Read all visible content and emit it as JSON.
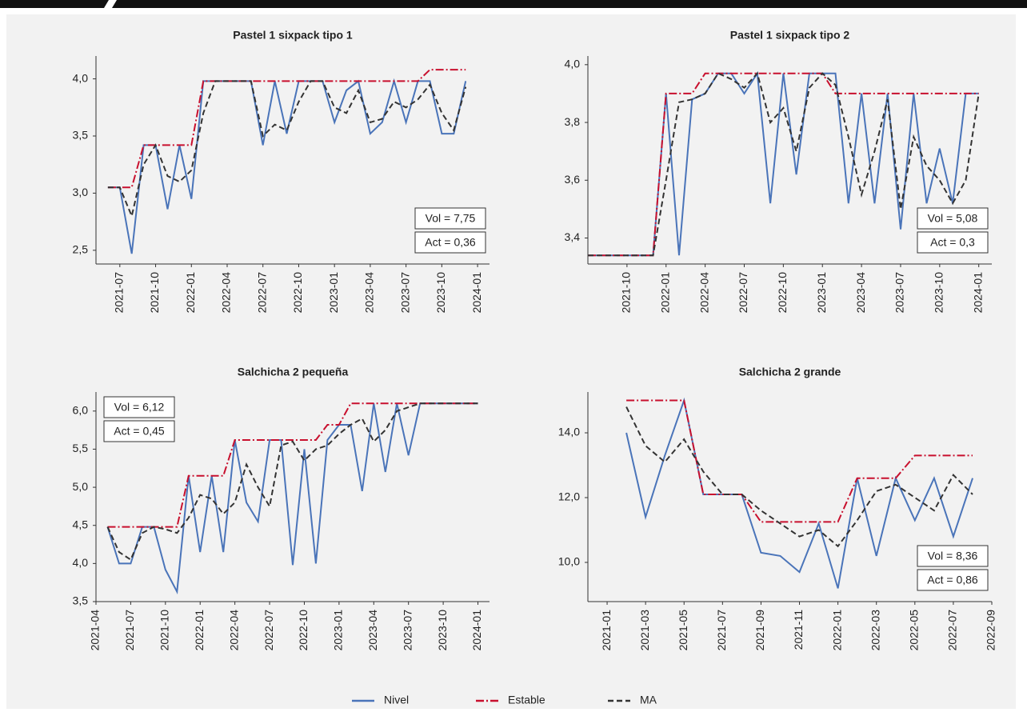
{
  "legend": [
    {
      "name": "Nivel",
      "color": "#4a74b9",
      "dash": "solid"
    },
    {
      "name": "Estable",
      "color": "#c8102e",
      "dash": "dashdot"
    },
    {
      "name": "MA",
      "color": "#333333",
      "dash": "dash"
    }
  ],
  "chart_data": [
    {
      "type": "line",
      "title": "Pastel 1 sixpack tipo 1",
      "x": [
        "2021-06",
        "2021-07",
        "2021-08",
        "2021-09",
        "2021-10",
        "2021-11",
        "2021-12",
        "2022-01",
        "2022-02",
        "2022-03",
        "2022-04",
        "2022-05",
        "2022-06",
        "2022-07",
        "2022-08",
        "2022-09",
        "2022-10",
        "2022-11",
        "2022-12",
        "2023-01",
        "2023-02",
        "2023-03",
        "2023-04",
        "2023-05",
        "2023-06",
        "2023-07",
        "2023-08",
        "2023-09",
        "2023-10",
        "2023-11",
        "2023-12"
      ],
      "series": [
        {
          "values": [
            3.05,
            3.05,
            2.47,
            3.42,
            3.42,
            2.86,
            3.42,
            2.95,
            3.98,
            3.98,
            3.98,
            3.98,
            3.98,
            3.42,
            3.98,
            3.52,
            3.98,
            3.98,
            3.98,
            3.62,
            3.9,
            3.98,
            3.52,
            3.62,
            3.98,
            3.62,
            3.98,
            3.98,
            3.52,
            3.52,
            3.98
          ]
        },
        {
          "values": [
            3.05,
            3.05,
            3.05,
            3.42,
            3.42,
            3.42,
            3.42,
            3.42,
            3.98,
            3.98,
            3.98,
            3.98,
            3.98,
            3.98,
            3.98,
            3.98,
            3.98,
            3.98,
            3.98,
            3.98,
            3.98,
            3.98,
            3.98,
            3.98,
            3.98,
            3.98,
            3.98,
            4.08,
            4.08,
            4.08,
            4.08
          ]
        },
        {
          "values": [
            3.05,
            3.05,
            2.8,
            3.25,
            3.42,
            3.15,
            3.1,
            3.2,
            3.7,
            3.98,
            3.98,
            3.98,
            3.98,
            3.5,
            3.6,
            3.55,
            3.8,
            3.98,
            3.98,
            3.75,
            3.7,
            3.9,
            3.62,
            3.65,
            3.8,
            3.75,
            3.82,
            3.95,
            3.7,
            3.55,
            3.93
          ]
        }
      ],
      "xlim": [
        "2021-05",
        "2024-02"
      ],
      "xticks": [
        "2021-07",
        "2021-10",
        "2022-01",
        "2022-04",
        "2022-07",
        "2022-10",
        "2023-01",
        "2023-04",
        "2023-07",
        "2023-10",
        "2024-01"
      ],
      "ylim": [
        2.38,
        4.2
      ],
      "yticks": [
        {
          "value": 2.5,
          "label": "2,5"
        },
        {
          "value": 3,
          "label": "3,0"
        },
        {
          "value": 3.5,
          "label": "3,5"
        },
        {
          "value": 4,
          "label": "4,0"
        }
      ],
      "annotations": [
        "Vol = 7,75",
        "Act = 0,36"
      ],
      "annotation_corner": "bottom-right"
    },
    {
      "type": "line",
      "title": "Pastel 1 sixpack tipo 2",
      "x": [
        "2021-07",
        "2021-08",
        "2021-09",
        "2021-10",
        "2021-11",
        "2021-12",
        "2022-01",
        "2022-02",
        "2022-03",
        "2022-04",
        "2022-05",
        "2022-06",
        "2022-07",
        "2022-08",
        "2022-09",
        "2022-10",
        "2022-11",
        "2022-12",
        "2023-01",
        "2023-02",
        "2023-03",
        "2023-04",
        "2023-05",
        "2023-06",
        "2023-07",
        "2023-08",
        "2023-09",
        "2023-10",
        "2023-11",
        "2023-12",
        "2024-01"
      ],
      "series": [
        {
          "values": [
            3.34,
            3.34,
            3.34,
            3.34,
            3.34,
            3.34,
            3.9,
            3.34,
            3.88,
            3.9,
            3.97,
            3.97,
            3.9,
            3.97,
            3.52,
            3.97,
            3.62,
            3.97,
            3.97,
            3.97,
            3.52,
            3.9,
            3.52,
            3.9,
            3.43,
            3.9,
            3.52,
            3.71,
            3.52,
            3.9,
            3.9
          ]
        },
        {
          "values": [
            3.34,
            3.34,
            3.34,
            3.34,
            3.34,
            3.34,
            3.9,
            3.9,
            3.9,
            3.97,
            3.97,
            3.97,
            3.97,
            3.97,
            3.97,
            3.97,
            3.97,
            3.97,
            3.97,
            3.9,
            3.9,
            3.9,
            3.9,
            3.9,
            3.9,
            3.9,
            3.9,
            3.9,
            3.9,
            3.9,
            3.9
          ]
        },
        {
          "values": [
            3.34,
            3.34,
            3.34,
            3.34,
            3.34,
            3.34,
            3.6,
            3.87,
            3.88,
            3.9,
            3.97,
            3.95,
            3.92,
            3.97,
            3.8,
            3.85,
            3.7,
            3.92,
            3.97,
            3.93,
            3.75,
            3.55,
            3.7,
            3.88,
            3.5,
            3.75,
            3.65,
            3.6,
            3.52,
            3.6,
            3.9
          ]
        }
      ],
      "xlim": [
        "2021-07",
        "2024-02"
      ],
      "xticks": [
        "2021-10",
        "2022-01",
        "2022-04",
        "2022-07",
        "2022-10",
        "2023-01",
        "2023-04",
        "2023-07",
        "2023-10",
        "2024-01"
      ],
      "ylim": [
        3.31,
        4.03
      ],
      "yticks": [
        {
          "value": 3.4,
          "label": "3,4"
        },
        {
          "value": 3.6,
          "label": "3,6"
        },
        {
          "value": 3.8,
          "label": "3,8"
        },
        {
          "value": 4,
          "label": "4,0"
        }
      ],
      "annotations": [
        "Vol = 5,08",
        "Act = 0,3"
      ],
      "annotation_corner": "bottom-right"
    },
    {
      "type": "line",
      "title": "Salchicha 2 pequeña",
      "x": [
        "2021-05",
        "2021-06",
        "2021-07",
        "2021-08",
        "2021-09",
        "2021-10",
        "2021-11",
        "2021-12",
        "2022-01",
        "2022-02",
        "2022-03",
        "2022-04",
        "2022-05",
        "2022-06",
        "2022-07",
        "2022-08",
        "2022-09",
        "2022-10",
        "2022-11",
        "2022-12",
        "2023-01",
        "2023-02",
        "2023-03",
        "2023-04",
        "2023-05",
        "2023-06",
        "2023-07",
        "2023-08",
        "2023-09",
        "2023-10",
        "2023-11",
        "2023-12",
        "2024-01"
      ],
      "series": [
        {
          "values": [
            4.48,
            4.0,
            4.0,
            4.48,
            4.48,
            3.92,
            3.63,
            5.15,
            4.15,
            5.15,
            4.15,
            5.62,
            4.8,
            4.55,
            5.62,
            5.62,
            3.98,
            5.5,
            4.0,
            5.62,
            5.82,
            5.82,
            4.95,
            6.1,
            5.2,
            6.1,
            5.42,
            6.1,
            6.1,
            6.1,
            6.1,
            6.1,
            6.1
          ]
        },
        {
          "values": [
            4.48,
            4.48,
            4.48,
            4.48,
            4.48,
            4.48,
            4.48,
            5.15,
            5.15,
            5.15,
            5.15,
            5.62,
            5.62,
            5.62,
            5.62,
            5.62,
            5.62,
            5.62,
            5.62,
            5.82,
            5.82,
            6.1,
            6.1,
            6.1,
            6.1,
            6.1,
            6.1,
            6.1,
            6.1,
            6.1,
            6.1,
            6.1,
            6.1
          ]
        },
        {
          "values": [
            4.48,
            4.15,
            4.05,
            4.4,
            4.48,
            4.45,
            4.4,
            4.6,
            4.9,
            4.85,
            4.65,
            4.8,
            5.3,
            5.0,
            4.75,
            5.55,
            5.6,
            5.35,
            5.5,
            5.55,
            5.7,
            5.82,
            5.9,
            5.6,
            5.75,
            6.0,
            6.05,
            6.1,
            6.1,
            6.1,
            6.1,
            6.1,
            6.1
          ]
        }
      ],
      "xlim": [
        "2021-04",
        "2024-02"
      ],
      "xticks": [
        "2021-04",
        "2021-07",
        "2021-10",
        "2022-01",
        "2022-04",
        "2022-07",
        "2022-10",
        "2023-01",
        "2023-04",
        "2023-07",
        "2023-10",
        "2024-01"
      ],
      "ylim": [
        3.5,
        6.25
      ],
      "yticks": [
        {
          "value": 3.5,
          "label": "3,5"
        },
        {
          "value": 4,
          "label": "4,0"
        },
        {
          "value": 4.5,
          "label": "4,5"
        },
        {
          "value": 5,
          "label": "5,0"
        },
        {
          "value": 5.5,
          "label": "5,5"
        },
        {
          "value": 6,
          "label": "6,0"
        }
      ],
      "annotations": [
        "Vol = 6,12",
        "Act = 0,45"
      ],
      "annotation_corner": "top-left"
    },
    {
      "type": "line",
      "title": "Salchicha 2 grande",
      "x": [
        "2021-02",
        "2021-03",
        "2021-04",
        "2021-05",
        "2021-06",
        "2021-07",
        "2021-08",
        "2021-09",
        "2021-10",
        "2021-11",
        "2021-12",
        "2022-01",
        "2022-02",
        "2022-03",
        "2022-04",
        "2022-05",
        "2022-06",
        "2022-07",
        "2022-08"
      ],
      "series": [
        {
          "values": [
            14.0,
            11.4,
            13.3,
            15.0,
            12.1,
            12.1,
            12.1,
            10.3,
            10.2,
            9.7,
            11.2,
            9.2,
            12.6,
            10.2,
            12.6,
            11.3,
            12.6,
            10.8,
            12.6
          ]
        },
        {
          "values": [
            15.0,
            15.0,
            15.0,
            15.0,
            12.1,
            12.1,
            12.1,
            11.25,
            11.25,
            11.25,
            11.25,
            11.25,
            12.6,
            12.6,
            12.6,
            13.3,
            13.3,
            13.3,
            13.3
          ]
        },
        {
          "values": [
            14.8,
            13.6,
            13.1,
            13.8,
            12.8,
            12.1,
            12.1,
            11.6,
            11.2,
            10.8,
            11.0,
            10.5,
            11.3,
            12.2,
            12.4,
            12.0,
            11.6,
            12.7,
            12.1
          ]
        }
      ],
      "xlim": [
        "2020-12",
        "2022-09"
      ],
      "xticks": [
        "2021-01",
        "2021-03",
        "2021-05",
        "2021-07",
        "2021-09",
        "2021-11",
        "2022-01",
        "2022-03",
        "2022-05",
        "2022-07",
        "2022-09"
      ],
      "ylim": [
        8.79,
        15.26
      ],
      "yticks": [
        {
          "value": 10,
          "label": "10,0"
        },
        {
          "value": 12,
          "label": "12,0"
        },
        {
          "value": 14,
          "label": "14,0"
        }
      ],
      "annotations": [
        "Vol = 8,36",
        "Act = 0,86"
      ],
      "annotation_corner": "bottom-right"
    }
  ]
}
